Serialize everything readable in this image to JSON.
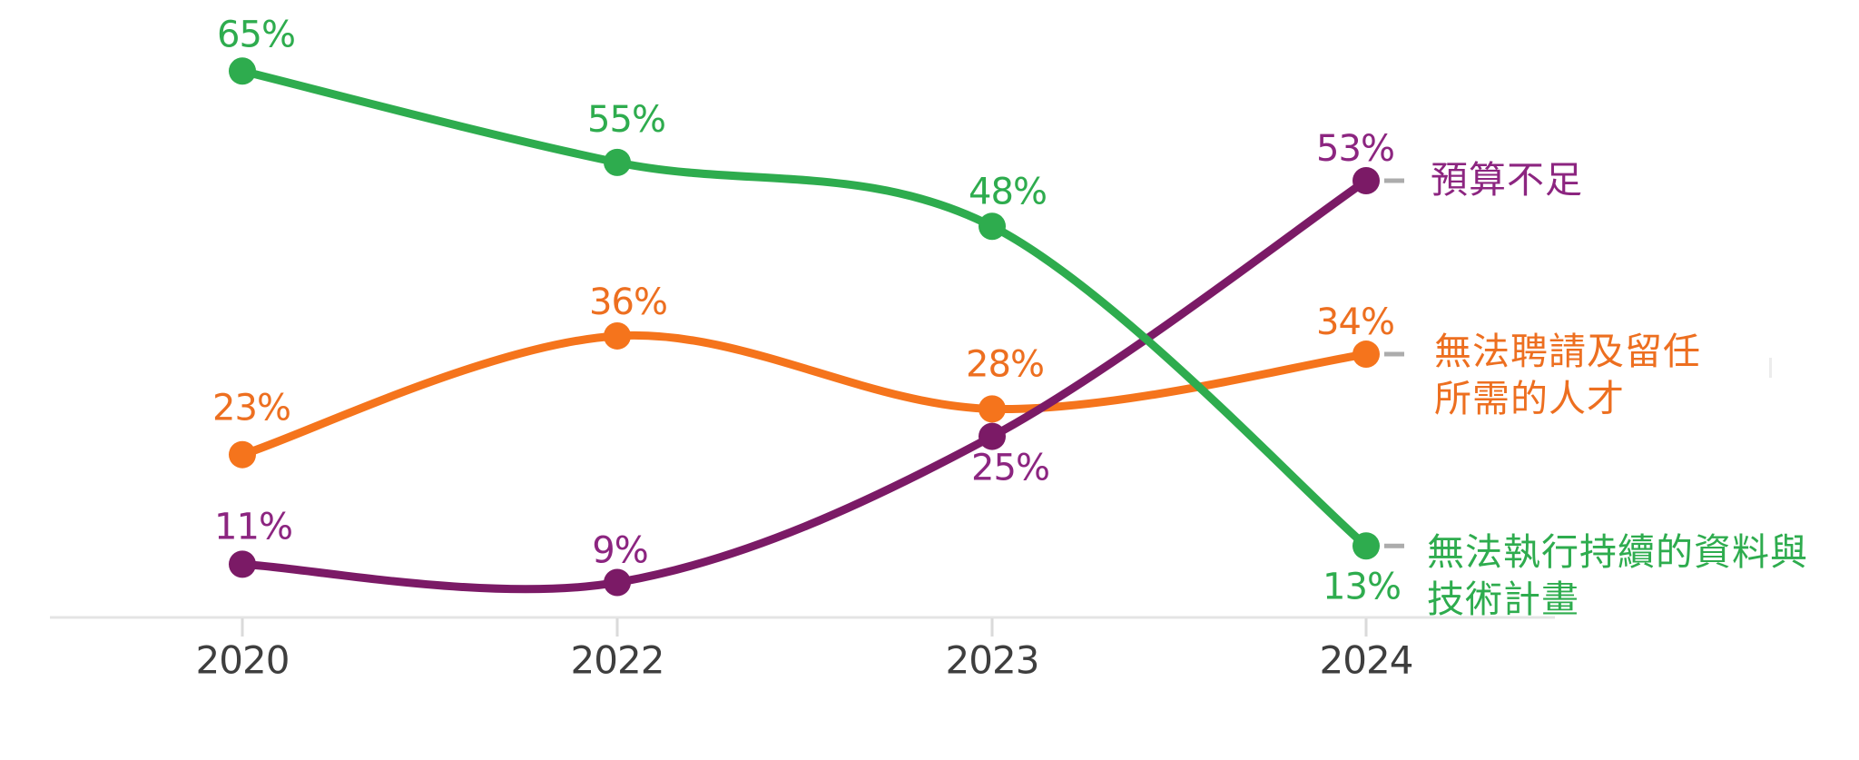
{
  "chart_data": {
    "type": "line",
    "categories": [
      "2020",
      "2022",
      "2023",
      "2024"
    ],
    "series": [
      {
        "id": "talent",
        "name": "無法聘請及留任所需的人才",
        "name_lines": [
          "無法聘請及留任",
          "所需的人才"
        ],
        "values": [
          23,
          36,
          28,
          34
        ],
        "color": "#F5741C",
        "label_color": "#ED6F20"
      },
      {
        "id": "budget",
        "name": "預算不足",
        "name_lines": [
          "預算不足"
        ],
        "values": [
          11,
          9,
          25,
          53
        ],
        "color": "#7B1A66",
        "label_color": "#8C2580"
      },
      {
        "id": "dataprog",
        "name": "無法執行持續的資料與技術計畫",
        "name_lines": [
          "無法執行持續的資料與",
          "技術計畫"
        ],
        "values": [
          65,
          55,
          48,
          13
        ],
        "color": "#2EAC4E",
        "label_color": "#2EAC4E"
      }
    ],
    "value_suffix": "%",
    "title": "",
    "xlabel": "",
    "ylabel": "",
    "ylim": [
      0,
      70
    ],
    "grid": false,
    "legend_position": "right-of-last-point",
    "axis_color": "#E4E4E4",
    "tick_color": "#DADADA",
    "tick_label_color": "#3E3E3E",
    "connector_dash_color": "#ACACAC"
  }
}
